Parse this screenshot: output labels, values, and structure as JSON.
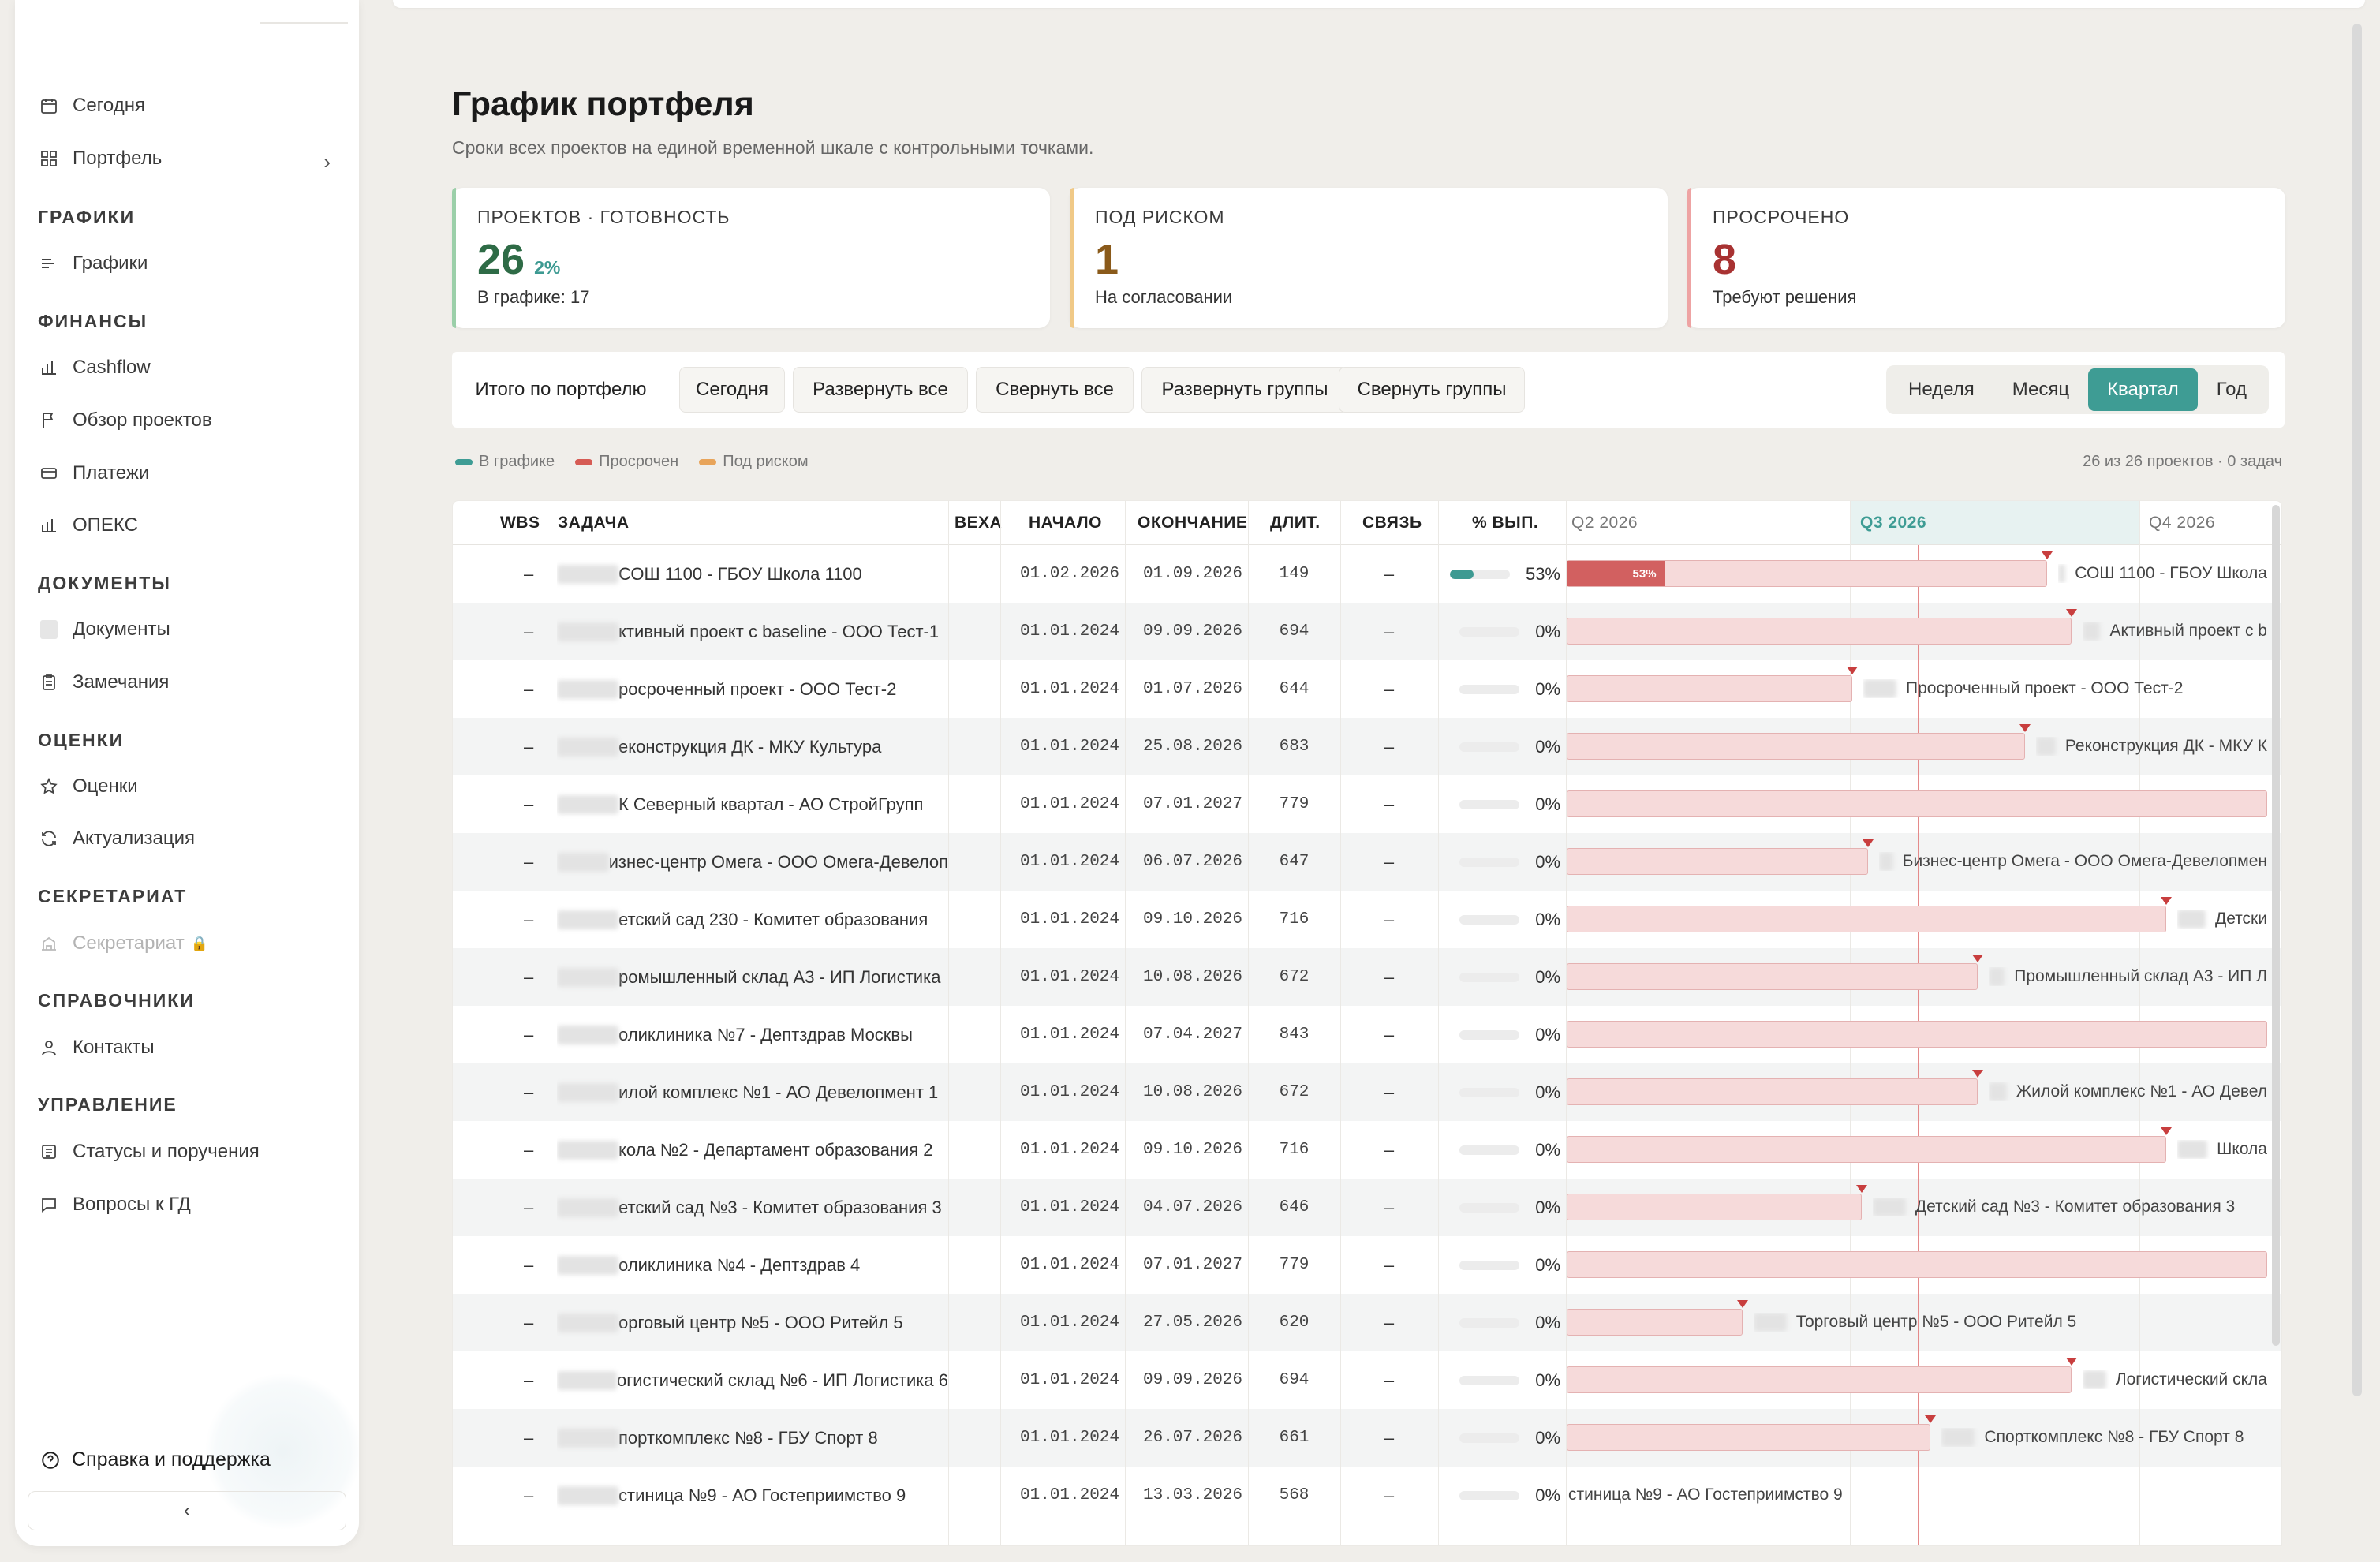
{
  "sidebar": {
    "sections": {
      "graphs": "ГРАФИКИ",
      "finance": "ФИНАНСЫ",
      "docs": "ДОКУМЕНТЫ",
      "ratings": "ОЦЕНКИ",
      "secretariat": "СЕКРЕТАРИАТ",
      "refs": "СПРАВОЧНИКИ",
      "management": "УПРАВЛЕНИЕ"
    },
    "items": {
      "today": "Сегодня",
      "portfolio": "Портфель",
      "graphs": "Графики",
      "cashflow": "Cashflow",
      "overview": "Обзор проектов",
      "payments": "Платежи",
      "opex": "ОПЕКС",
      "documents": "Документы",
      "remarks": "Замечания",
      "ratings": "Оценки",
      "actualization": "Актуализация",
      "secretariat": "Секретариат",
      "contacts": "Контакты",
      "statuses": "Статусы и поручения",
      "questions": "Вопросы к ГД"
    },
    "help": "Справка и поддержка",
    "collapse": "‹"
  },
  "page": {
    "title": "График портфеля",
    "subtitle": "Сроки всех проектов на единой временной шкале с контрольными точками."
  },
  "cards": {
    "projects": {
      "label": "ПРОЕКТОВ · ГОТОВНОСТЬ",
      "value": "26",
      "pct": "2%",
      "note": "В графике: 17",
      "color": "#2e6b46"
    },
    "risk": {
      "label": "ПОД РИСКОМ",
      "value": "1",
      "note": "На согласовании",
      "color": "#8a5a1a"
    },
    "overdue": {
      "label": "ПРОСРОЧЕНО",
      "value": "8",
      "note": "Требуют решения",
      "color": "#a83232"
    }
  },
  "toolbar": {
    "total": "Итого по портфелю",
    "today": "Сегодня",
    "expand_all": "Развернуть все",
    "collapse_all": "Свернуть все",
    "expand_groups": "Развернуть группы",
    "collapse_groups": "Свернуть группы",
    "scale": {
      "week": "Неделя",
      "month": "Месяц",
      "quarter": "Квартал",
      "year": "Год",
      "active": "Квартал"
    }
  },
  "legend": {
    "in_graph": "В графике",
    "overdue": "Просрочен",
    "at_risk": "Под риском",
    "colors": {
      "in_graph": "#3e9c94",
      "overdue": "#d65b54",
      "at_risk": "#e8a45a"
    }
  },
  "count_text": "26 из 26 проектов · 0 задач",
  "table": {
    "headers": {
      "wbs": "WBS",
      "task": "ЗАДАЧА",
      "milestone": "ВЕХА",
      "start": "НАЧАЛО",
      "end": "ОКОНЧАНИЕ",
      "dur": "ДЛИТ.",
      "link": "СВЯЗЬ",
      "pct": "% ВЫП."
    },
    "quarters": [
      "Q2 2026",
      "Q3 2026",
      "Q4 2026"
    ],
    "rows": [
      {
        "wbs": "–",
        "task": "СОШ 1100 - ГБОУ Школа 1100",
        "start": "01.02.2026",
        "end": "01.09.2026",
        "dur": "149",
        "link": "–",
        "pct": "53%",
        "pct_value": 53,
        "gantt_label": "СОШ 1100 - ГБОУ Школа"
      },
      {
        "wbs": "–",
        "task": "ктивный проект с baseline - ООО Тест-1",
        "start": "01.01.2024",
        "end": "09.09.2026",
        "dur": "694",
        "link": "–",
        "pct": "0%",
        "pct_value": 0,
        "gantt_label": "Активный проект с b"
      },
      {
        "wbs": "–",
        "task": "росроченный проект - ООО Тест-2",
        "start": "01.01.2024",
        "end": "01.07.2026",
        "dur": "644",
        "link": "–",
        "pct": "0%",
        "pct_value": 0,
        "gantt_label": "Просроченный проект - ООО Тест-2"
      },
      {
        "wbs": "–",
        "task": "еконструкция ДК - МКУ Культура",
        "start": "01.01.2024",
        "end": "25.08.2026",
        "dur": "683",
        "link": "–",
        "pct": "0%",
        "pct_value": 0,
        "gantt_label": "Реконструкция ДК - МКУ К"
      },
      {
        "wbs": "–",
        "task": "К Северный квартал - АО СтройГрупп",
        "start": "01.01.2024",
        "end": "07.01.2027",
        "dur": "779",
        "link": "–",
        "pct": "0%",
        "pct_value": 0,
        "gantt_label": ""
      },
      {
        "wbs": "–",
        "task": "изнес-центр Омега - ООО Омега-Девелоп",
        "start": "01.01.2024",
        "end": "06.07.2026",
        "dur": "647",
        "link": "–",
        "pct": "0%",
        "pct_value": 0,
        "gantt_label": "Бизнес-центр Омега - ООО Омега-Девелопмен"
      },
      {
        "wbs": "–",
        "task": "етский сад 230 - Комитет образования",
        "start": "01.01.2024",
        "end": "09.10.2026",
        "dur": "716",
        "link": "–",
        "pct": "0%",
        "pct_value": 0,
        "gantt_label": "Детски"
      },
      {
        "wbs": "–",
        "task": "ромышленный склад А3 - ИП Логистика",
        "start": "01.01.2024",
        "end": "10.08.2026",
        "dur": "672",
        "link": "–",
        "pct": "0%",
        "pct_value": 0,
        "gantt_label": "Промышленный склад А3 - ИП Л"
      },
      {
        "wbs": "–",
        "task": "оликлиника №7 - Дептздрав Москвы",
        "start": "01.01.2024",
        "end": "07.04.2027",
        "dur": "843",
        "link": "–",
        "pct": "0%",
        "pct_value": 0,
        "gantt_label": ""
      },
      {
        "wbs": "–",
        "task": "илой комплекс №1 - АО Девелопмент 1",
        "start": "01.01.2024",
        "end": "10.08.2026",
        "dur": "672",
        "link": "–",
        "pct": "0%",
        "pct_value": 0,
        "gantt_label": "Жилой комплекс №1 - АО Девел"
      },
      {
        "wbs": "–",
        "task": "кола №2 - Департамент образования 2",
        "start": "01.01.2024",
        "end": "09.10.2026",
        "dur": "716",
        "link": "–",
        "pct": "0%",
        "pct_value": 0,
        "gantt_label": "Школа"
      },
      {
        "wbs": "–",
        "task": "етский сад №3 - Комитет образования 3",
        "start": "01.01.2024",
        "end": "04.07.2026",
        "dur": "646",
        "link": "–",
        "pct": "0%",
        "pct_value": 0,
        "gantt_label": "Детский сад №3 - Комитет образования 3"
      },
      {
        "wbs": "–",
        "task": "оликлиника №4 - Дептздрав 4",
        "start": "01.01.2024",
        "end": "07.01.2027",
        "dur": "779",
        "link": "–",
        "pct": "0%",
        "pct_value": 0,
        "gantt_label": ""
      },
      {
        "wbs": "–",
        "task": "орговый центр №5 - ООО Ритейл 5",
        "start": "01.01.2024",
        "end": "27.05.2026",
        "dur": "620",
        "link": "–",
        "pct": "0%",
        "pct_value": 0,
        "gantt_label": "Торговый центр №5 - ООО Ритейл 5"
      },
      {
        "wbs": "–",
        "task": "огистический склад №6 - ИП Логистика 6",
        "start": "01.01.2024",
        "end": "09.09.2026",
        "dur": "694",
        "link": "–",
        "pct": "0%",
        "pct_value": 0,
        "gantt_label": "Логистический скла"
      },
      {
        "wbs": "–",
        "task": "порткомплекс №8 - ГБУ Спорт 8",
        "start": "01.01.2024",
        "end": "26.07.2026",
        "dur": "661",
        "link": "–",
        "pct": "0%",
        "pct_value": 0,
        "gantt_label": "Спорткомплекс №8 - ГБУ Спорт 8"
      },
      {
        "wbs": "–",
        "task": "стиница №9 - АО Гостеприимство 9",
        "start": "01.01.2024",
        "end": "13.03.2026",
        "dur": "568",
        "link": "–",
        "pct": "0%",
        "pct_value": 0,
        "gantt_label": "стиница №9 - АО Гостеприимство 9"
      }
    ]
  }
}
